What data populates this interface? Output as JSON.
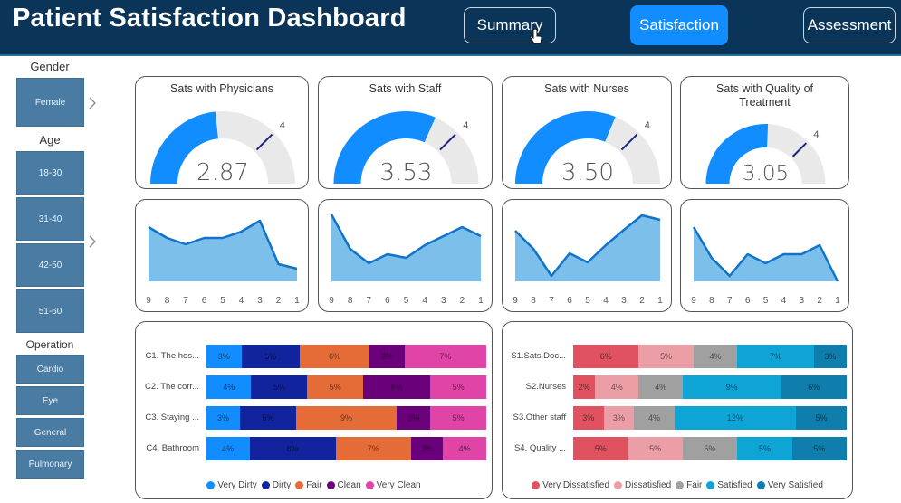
{
  "header": {
    "title": "Patient Satisfaction Dashboard",
    "nav": [
      {
        "label": "Summary",
        "active": false
      },
      {
        "label": "Satisfaction",
        "active": true
      },
      {
        "label": "Assessment",
        "active": false
      }
    ]
  },
  "filters": {
    "gender": {
      "label": "Gender",
      "options": [
        "Female"
      ]
    },
    "age": {
      "label": "Age",
      "options": [
        "18-30",
        "31-40",
        "42-50",
        "51-60"
      ]
    },
    "operation": {
      "label": "Operation",
      "options": [
        "Cardio",
        "Eye",
        "General",
        "Pulmonary"
      ]
    }
  },
  "colors": {
    "gauge_fill": "#118dff",
    "gauge_track": "#e9e9e9",
    "target_line": "#1a237e",
    "area_line": "#1173c9",
    "area_fill": "#7cbfeb",
    "slicer": "#4a7ca3",
    "header": "#0b3558"
  },
  "gauges": [
    {
      "title": "Sats with Physicians",
      "value": 2.87,
      "display": "2.87",
      "min": 1,
      "max": 5,
      "target": 4,
      "target_label": "4"
    },
    {
      "title": "Sats with Staff",
      "value": 3.53,
      "display": "3.53",
      "min": 1,
      "max": 5,
      "target": 4,
      "target_label": "4"
    },
    {
      "title": "Sats with Nurses",
      "value": 3.5,
      "display": "3.50",
      "min": 1,
      "max": 5,
      "target": 4,
      "target_label": "4"
    },
    {
      "title": "Sats with Quality of Treatment",
      "value": 3.05,
      "display": "3.05",
      "min": 1,
      "max": 5,
      "target": 4,
      "target_label": "4"
    }
  ],
  "chart_data": [
    {
      "type": "area",
      "name": "physicians-trend",
      "x": [
        "9",
        "8",
        "7",
        "6",
        "5",
        "4",
        "3",
        "2",
        "1"
      ],
      "values": [
        3.0,
        2.4,
        2.05,
        2.4,
        2.4,
        2.75,
        3.35,
        0.95,
        0.7
      ],
      "ylim": [
        0,
        4
      ]
    },
    {
      "type": "area",
      "name": "staff-trend",
      "x": [
        "9",
        "8",
        "7",
        "6",
        "5",
        "4",
        "3",
        "2",
        "1"
      ],
      "values": [
        3.7,
        1.8,
        1.0,
        1.5,
        1.3,
        2.0,
        2.5,
        3.0,
        2.5
      ],
      "ylim": [
        0,
        4
      ]
    },
    {
      "type": "area",
      "name": "nurses-trend",
      "x": [
        "9",
        "8",
        "7",
        "6",
        "5",
        "4",
        "3",
        "2",
        "1"
      ],
      "values": [
        2.8,
        1.8,
        0.3,
        1.55,
        1.05,
        2.0,
        2.85,
        3.65,
        3.4
      ],
      "ylim": [
        0,
        4
      ]
    },
    {
      "type": "area",
      "name": "quality-trend",
      "x": [
        "9",
        "8",
        "7",
        "6",
        "5",
        "4",
        "3",
        "2",
        "1"
      ],
      "values": [
        3.0,
        1.3,
        0.3,
        1.5,
        1.0,
        1.5,
        1.5,
        2.0,
        0.0
      ],
      "ylim": [
        0,
        4
      ]
    },
    {
      "type": "bar",
      "stacked": "100%",
      "orientation": "horizontal",
      "name": "cleanliness",
      "categories": [
        "C1. The hos...",
        "C2. The corr...",
        "C3. Staying ...",
        "C4. Bathroom"
      ],
      "series": [
        {
          "name": "Very Dirty",
          "color": "#118dff",
          "values": [
            3,
            4,
            3,
            4
          ]
        },
        {
          "name": "Dirty",
          "color": "#12239e",
          "values": [
            5,
            5,
            5,
            8
          ]
        },
        {
          "name": "Fair",
          "color": "#e66c37",
          "values": [
            6,
            5,
            9,
            7
          ]
        },
        {
          "name": "Clean",
          "color": "#6b007b",
          "values": [
            3,
            6,
            3,
            3
          ]
        },
        {
          "name": "Very Clean",
          "color": "#e044a7",
          "values": [
            7,
            5,
            5,
            4
          ]
        }
      ],
      "legend_position": "bottom"
    },
    {
      "type": "bar",
      "stacked": "100%",
      "orientation": "horizontal",
      "name": "staff-satisfaction",
      "categories": [
        "S1.Sats.Doc...",
        "S2.Nurses",
        "S3.Other staff",
        "S4. Quality ..."
      ],
      "series": [
        {
          "name": "Very Dissatisfied",
          "color": "#e15260",
          "values": [
            6,
            2,
            3,
            5
          ]
        },
        {
          "name": "Dissatisfied",
          "color": "#ec9ea6",
          "values": [
            5,
            4,
            3,
            5
          ]
        },
        {
          "name": "Fair",
          "color": "#a0a0a0",
          "values": [
            4,
            4,
            4,
            5
          ]
        },
        {
          "name": "Satisfied",
          "color": "#0ea4d6",
          "values": [
            7,
            9,
            12,
            5
          ]
        },
        {
          "name": "Very Satisfied",
          "color": "#0f7ead",
          "values": [
            3,
            6,
            5,
            5
          ]
        }
      ],
      "legend_position": "bottom"
    }
  ]
}
